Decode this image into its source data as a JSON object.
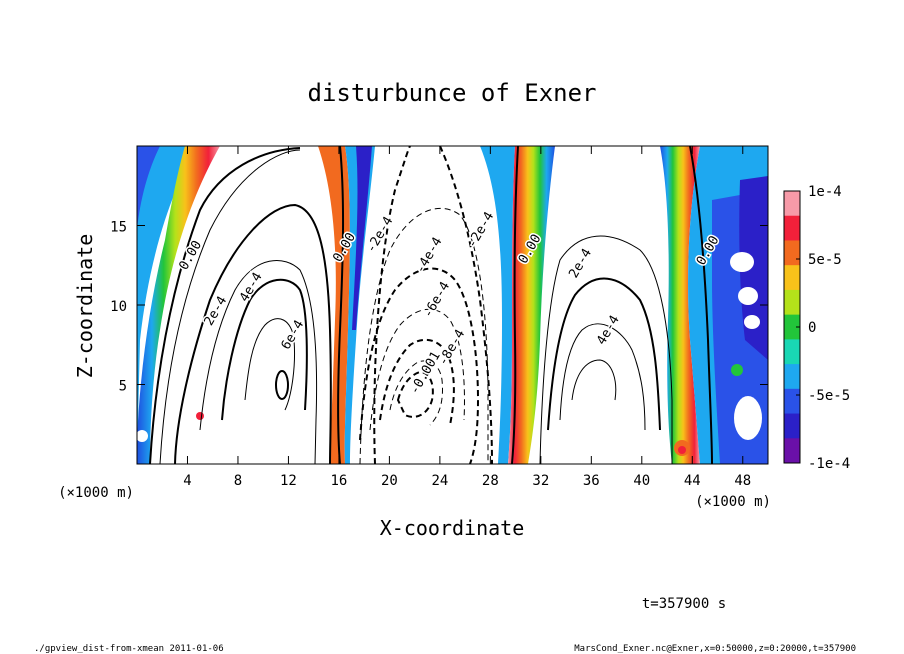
{
  "chart_data": {
    "type": "heatmap",
    "title": "disturbunce of Exner",
    "xlabel": "X-coordinate",
    "ylabel": "Z-coordinate",
    "x_unit_left": "(×1000 m)",
    "x_unit_right": "(×1000 m)",
    "x_ticks": [
      "4",
      "8",
      "12",
      "16",
      "20",
      "24",
      "28",
      "32",
      "36",
      "40",
      "44",
      "48"
    ],
    "x_tick_values": [
      4,
      8,
      12,
      16,
      20,
      24,
      28,
      32,
      36,
      40,
      44,
      48
    ],
    "y_ticks": [
      "5",
      "10",
      "15"
    ],
    "y_tick_values": [
      5,
      10,
      15
    ],
    "xlim": [
      0,
      50
    ],
    "ylim": [
      0,
      20
    ],
    "colorbar": {
      "labels": [
        "1e-4",
        "5e-5",
        "0",
        "-5e-5",
        "-1e-4"
      ],
      "values": [
        0.0001,
        5e-05,
        0,
        -5e-05,
        -0.0001
      ],
      "range": [
        -0.0001,
        0.0001
      ],
      "colors": [
        "#f79aa8",
        "#f2203a",
        "#f26a1f",
        "#f8c21a",
        "#b4e21a",
        "#22c53a",
        "#19d7b4",
        "#1ea8f0",
        "#2a52e8",
        "#2b20c8",
        "#6a10a8"
      ]
    },
    "contour_labels": [
      {
        "text": "0.00",
        "x": 4.5,
        "z": 13.0
      },
      {
        "text": "2e-4",
        "x": 6.5,
        "z": 9.5
      },
      {
        "text": "4e-4",
        "x": 9.3,
        "z": 11.0
      },
      {
        "text": "6e-4",
        "x": 12.6,
        "z": 8.0
      },
      {
        "text": "0.00",
        "x": 16.7,
        "z": 13.5
      },
      {
        "text": "-2e-4",
        "x": 19.5,
        "z": 14.3
      },
      {
        "text": "-4e-4",
        "x": 23.4,
        "z": 13.0
      },
      {
        "text": "-6e-4",
        "x": 24.0,
        "z": 10.2
      },
      {
        "text": "-8e-4",
        "x": 25.2,
        "z": 7.2
      },
      {
        "text": "-0.001",
        "x": 23.1,
        "z": 5.6
      },
      {
        "text": "-2e-4",
        "x": 27.5,
        "z": 14.6
      },
      {
        "text": "0.00",
        "x": 31.4,
        "z": 13.4
      },
      {
        "text": "2e-4",
        "x": 35.4,
        "z": 12.5
      },
      {
        "text": "4e-4",
        "x": 37.6,
        "z": 8.3
      },
      {
        "text": "0.00",
        "x": 45.5,
        "z": 13.3
      }
    ],
    "grid": false
  },
  "annotation_time": "t=357900 s",
  "footer": {
    "left": "./gpview_dist-from-xmean  2011-01-06",
    "right": "MarsCond_Exner.nc@Exner,x=0:50000,z=0:20000,t=357900"
  }
}
